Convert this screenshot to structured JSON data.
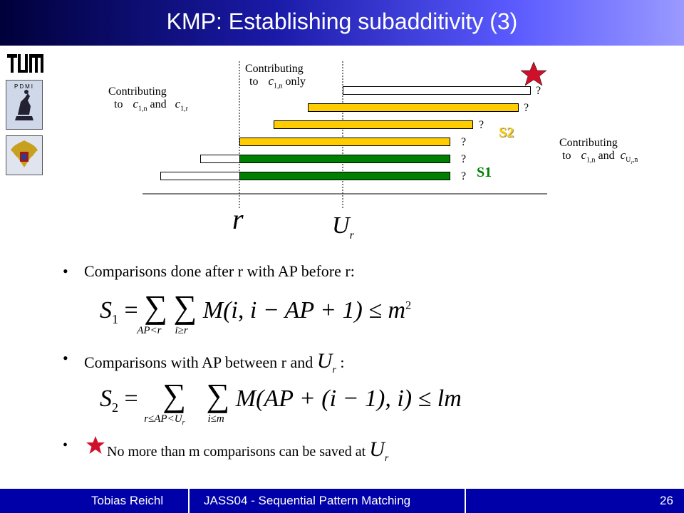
{
  "title": "KMP: Establishing subadditivity (3)",
  "logos": {
    "tum": "TUM",
    "pdmi": "PDMI"
  },
  "diagram": {
    "left_label": {
      "line1": "Contributing",
      "to": "to",
      "var1": "c",
      "sub1": "1,n",
      "and": "and",
      "var2": "c",
      "sub2": "1,r"
    },
    "middle_label": {
      "line1": "Contributing",
      "to": "to",
      "var1": "c",
      "sub1": "1,n",
      "only": "only"
    },
    "right_label": {
      "line1": "Contributing",
      "to": "to",
      "var1": "c",
      "sub1": "1,n",
      "and": "and",
      "var2": "c",
      "sub2": "U",
      "sub2b": "r",
      "sub2c": ",n"
    },
    "question_mark": "?",
    "s2_label": "S2",
    "s1_label": "S1",
    "axis_r": "r",
    "axis_ur": "U",
    "axis_ur_sub": "r",
    "colors": {
      "white": "#ffffff",
      "yellow": "#ffcc00",
      "green": "#008000",
      "star": "#d0102a",
      "s2": "#ffcc00",
      "s1": "#008000"
    }
  },
  "bullets": {
    "b1": "Comparisons done after r with AP before r:",
    "b2_prefix": "Comparisons with AP between r and",
    "b2_var": "U",
    "b2_sub": "r",
    "b2_suffix": ":",
    "b3": "No more than m comparisons can be saved at",
    "b3_var": "U",
    "b3_sub": "r"
  },
  "formulas": {
    "f1_lhs": "S",
    "f1_lhs_sub": "1",
    "f1_sum1_sub": "AP<r",
    "f1_sum2_sub": "i≥r",
    "f1_body": "M(i, i − AP + 1) ≤ m",
    "f1_sup": "2",
    "f2_lhs": "S",
    "f2_lhs_sub": "2",
    "f2_sum1_sub": "r≤AP<U",
    "f2_sum1_subsub": "r",
    "f2_sum2_sub": "i≤m",
    "f2_body": "M(AP + (i − 1), i) ≤ lm"
  },
  "footer": {
    "author": "Tobias Reichl",
    "course": "JASS04 - Sequential Pattern Matching",
    "page": "26"
  }
}
